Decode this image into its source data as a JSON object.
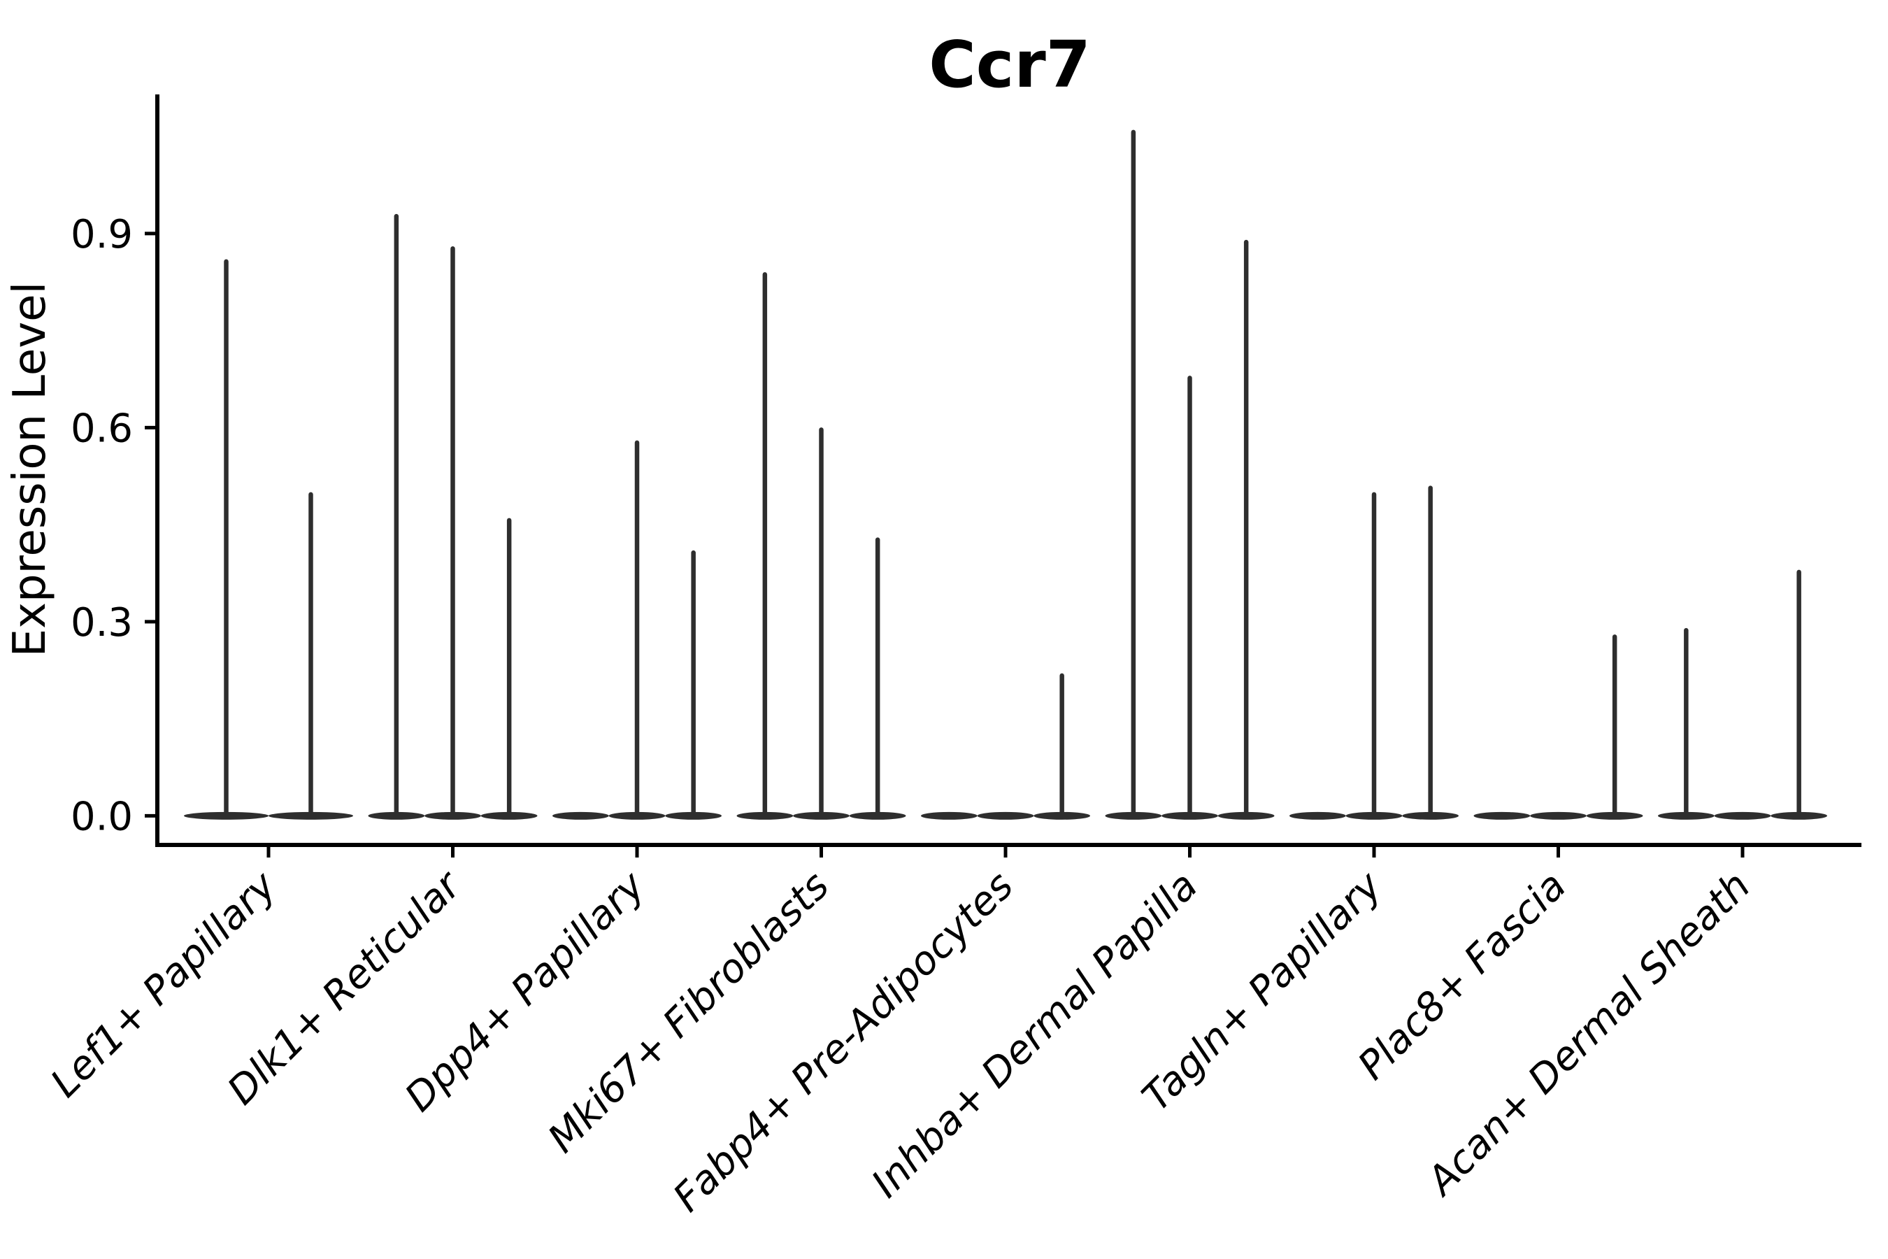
{
  "chart_data": {
    "type": "violin",
    "title": "Ccr7",
    "ylabel": "Expression Level",
    "xlabel": "",
    "ylim": [
      -0.045,
      1.115
    ],
    "yticks": [
      0.0,
      0.3,
      0.6,
      0.9
    ],
    "ytick_labels": [
      "0.0",
      "0.3",
      "0.6",
      "0.9"
    ],
    "grid": false,
    "legend": null,
    "categories": [
      "Lef1+ Papillary",
      "Dlk1+ Reticular",
      "Dpp4+ Papillary",
      "Mki67+ Fibroblasts",
      "Fabp4+ Pre-Adipocytes",
      "Inhba+ Dermal Papilla",
      "Tagln+ Papillary",
      "Plac8+ Fascia",
      "Acan+ Dermal Sheath"
    ],
    "groups": [
      {
        "category": "Lef1+ Papillary",
        "violin_maxima": [
          0.86,
          0.5
        ]
      },
      {
        "category": "Dlk1+ Reticular",
        "violin_maxima": [
          0.93,
          0.88,
          0.46
        ]
      },
      {
        "category": "Dpp4+ Papillary",
        "violin_maxima": [
          0.0,
          0.58,
          0.41
        ]
      },
      {
        "category": "Mki67+ Fibroblasts",
        "violin_maxima": [
          0.84,
          0.6,
          0.43
        ]
      },
      {
        "category": "Fabp4+ Pre-Adipocytes",
        "violin_maxima": [
          0.0,
          0.0,
          0.22
        ]
      },
      {
        "category": "Inhba+ Dermal Papilla",
        "violin_maxima": [
          1.06,
          0.68,
          0.89
        ]
      },
      {
        "category": "Tagln+ Papillary",
        "violin_maxima": [
          0.0,
          0.5,
          0.51
        ]
      },
      {
        "category": "Plac8+ Fascia",
        "violin_maxima": [
          0.0,
          0.0,
          0.28
        ]
      },
      {
        "category": "Acan+ Dermal Sheath",
        "violin_maxima": [
          0.29,
          0.0,
          0.38
        ]
      }
    ],
    "colors": {
      "violin": "#2e2e2e",
      "axis": "#000000",
      "text": "#000000",
      "background": "#ffffff"
    }
  }
}
